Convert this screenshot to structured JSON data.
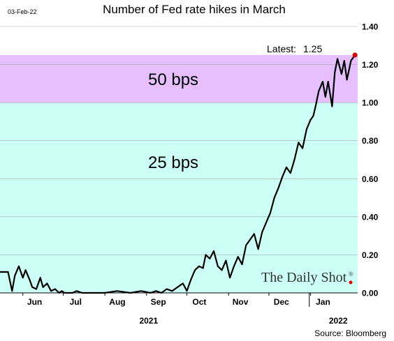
{
  "date_stamp": "03-Feb-22",
  "source": "Source: Bloomberg",
  "watermark": "The Daily Shot",
  "watermark_mark": "®",
  "colors": {
    "band_low": "#CCFFF5",
    "band_high": "#E6BFFF",
    "line": "#000000",
    "marker": "#E00000",
    "grid": "#AAAAAA"
  },
  "chart_data": {
    "type": "line",
    "title": "Number of Fed rate hikes in March",
    "xlabel": "",
    "ylabel": "",
    "ylim": [
      0,
      1.4
    ],
    "yticks": [
      "0.00",
      "0.20",
      "0.40",
      "0.60",
      "0.80",
      "1.00",
      "1.20",
      "1.40"
    ],
    "ytick_values": [
      0,
      0.2,
      0.4,
      0.6,
      0.8,
      1.0,
      1.2,
      1.4
    ],
    "xlim": [
      "2021-05-15",
      "2022-02-05"
    ],
    "month_labels": [
      {
        "date": "2021-06-01",
        "label": "Jun"
      },
      {
        "date": "2021-07-01",
        "label": "Jul"
      },
      {
        "date": "2021-08-01",
        "label": "Aug"
      },
      {
        "date": "2021-09-01",
        "label": "Sep"
      },
      {
        "date": "2021-10-01",
        "label": "Oct"
      },
      {
        "date": "2021-11-01",
        "label": "Nov"
      },
      {
        "date": "2021-12-01",
        "label": "Dec"
      },
      {
        "date": "2022-01-01",
        "label": "Jan"
      }
    ],
    "year_labels": [
      {
        "date": "2021-09-01",
        "label": "2021"
      },
      {
        "date": "2022-01-20",
        "label": "2022"
      }
    ],
    "year_divider": "2021-12-31",
    "bands": [
      {
        "from": 0,
        "to": 1.0,
        "label": "25 bps"
      },
      {
        "from": 1.0,
        "to": 1.25,
        "label": "50 bps"
      }
    ],
    "annotation": {
      "label": "Latest:",
      "value": "1.25"
    },
    "latest_point": {
      "x": "2022-02-03",
      "y": 1.25
    },
    "series": [
      {
        "x": [
          "2021-05-15",
          "2021-05-19",
          "2021-05-21",
          "2021-05-24",
          "2021-05-26",
          "2021-05-29",
          "2021-06-01",
          "2021-06-03",
          "2021-06-06",
          "2021-06-08",
          "2021-06-11",
          "2021-06-14",
          "2021-06-16",
          "2021-06-19",
          "2021-06-22",
          "2021-06-25",
          "2021-06-28",
          "2021-06-30",
          "2021-07-02",
          "2021-07-05",
          "2021-07-08",
          "2021-07-11",
          "2021-07-15",
          "2021-07-20",
          "2021-07-25",
          "2021-08-01",
          "2021-08-10",
          "2021-08-20",
          "2021-08-28",
          "2021-09-04",
          "2021-09-08",
          "2021-09-12",
          "2021-09-16",
          "2021-09-20",
          "2021-09-24",
          "2021-09-28",
          "2021-10-01",
          "2021-10-04",
          "2021-10-07",
          "2021-10-10",
          "2021-10-13",
          "2021-10-15",
          "2021-10-18",
          "2021-10-21",
          "2021-10-24",
          "2021-10-27",
          "2021-10-30",
          "2021-11-02",
          "2021-11-05",
          "2021-11-08",
          "2021-11-11",
          "2021-11-14",
          "2021-11-17",
          "2021-11-20",
          "2021-11-23",
          "2021-11-26",
          "2021-11-29",
          "2021-12-02",
          "2021-12-05",
          "2021-12-08",
          "2021-12-11",
          "2021-12-14",
          "2021-12-17",
          "2021-12-20",
          "2021-12-23",
          "2021-12-26",
          "2021-12-29",
          "2022-01-01",
          "2022-01-03",
          "2022-01-05",
          "2022-01-07",
          "2022-01-10",
          "2022-01-12",
          "2022-01-14",
          "2022-01-17",
          "2022-01-19",
          "2022-01-21",
          "2022-01-24",
          "2022-01-26",
          "2022-01-28",
          "2022-01-31",
          "2022-02-03"
        ],
        "y": [
          0.11,
          0.11,
          0.11,
          0.01,
          0.09,
          0.14,
          0.08,
          0.12,
          0.07,
          0.03,
          0.02,
          0.08,
          0.03,
          0.05,
          0.01,
          0.02,
          0.0,
          0.01,
          0.0,
          0.0,
          0.0,
          0.01,
          0.0,
          0.0,
          0.0,
          0.0,
          0.01,
          0.0,
          0.01,
          0.0,
          0.01,
          0.0,
          0.02,
          0.01,
          0.03,
          0.05,
          0.01,
          0.07,
          0.12,
          0.14,
          0.13,
          0.2,
          0.18,
          0.22,
          0.14,
          0.12,
          0.17,
          0.08,
          0.14,
          0.19,
          0.15,
          0.25,
          0.28,
          0.31,
          0.23,
          0.32,
          0.37,
          0.42,
          0.5,
          0.55,
          0.61,
          0.66,
          0.63,
          0.7,
          0.79,
          0.76,
          0.86,
          0.91,
          0.93,
          0.99,
          1.06,
          1.11,
          1.03,
          1.11,
          0.98,
          1.16,
          1.23,
          1.15,
          1.22,
          1.12,
          1.22,
          1.25
        ]
      }
    ]
  }
}
